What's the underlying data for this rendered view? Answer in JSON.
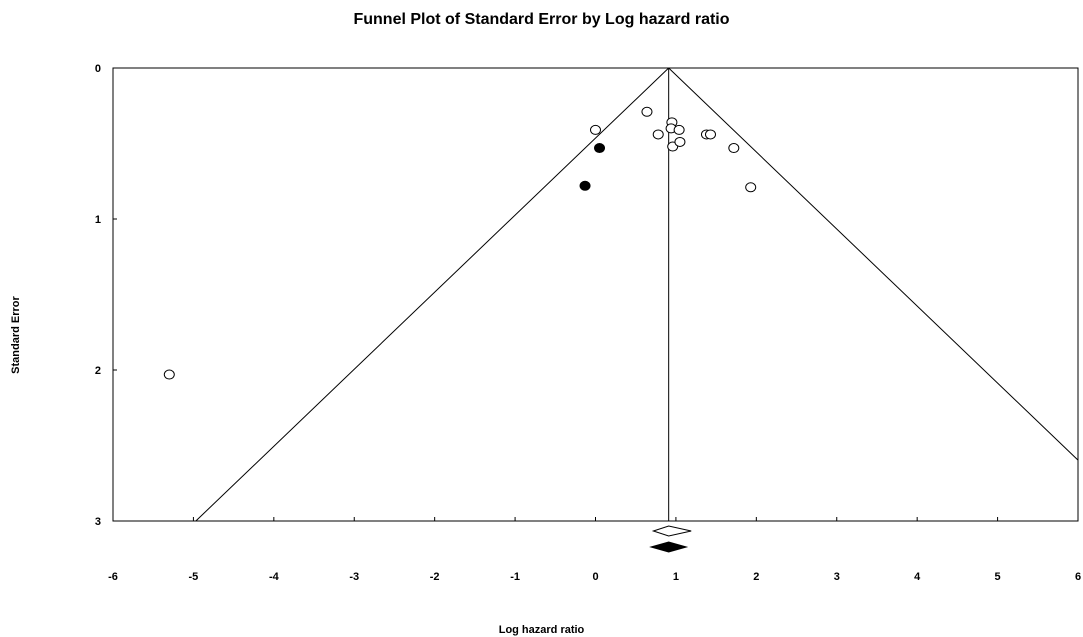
{
  "chart_data": {
    "type": "scatter",
    "title": "Funnel Plot of Standard Error by Log hazard ratio",
    "xlabel": "Log hazard ratio",
    "ylabel": "Standard Error",
    "xlim": [
      -6,
      6
    ],
    "ylim": [
      0,
      3
    ],
    "y_inverted": true,
    "x_ticks": [
      "-6",
      "-5",
      "-4",
      "-3",
      "-2",
      "-1",
      "0",
      "1",
      "2",
      "3",
      "4",
      "5",
      "6"
    ],
    "y_ticks": [
      "0",
      "1",
      "2",
      "3"
    ],
    "grid": false,
    "funnel_center": 0.91,
    "funnel_z": 1.96,
    "series": [
      {
        "marker": "open-circle",
        "points": [
          {
            "x": -5.3,
            "y": 2.03
          },
          {
            "x": 0.0,
            "y": 0.41
          },
          {
            "x": 0.64,
            "y": 0.29
          },
          {
            "x": 0.78,
            "y": 0.44
          },
          {
            "x": 0.95,
            "y": 0.36
          },
          {
            "x": 0.94,
            "y": 0.4
          },
          {
            "x": 1.04,
            "y": 0.41
          },
          {
            "x": 0.96,
            "y": 0.52
          },
          {
            "x": 1.05,
            "y": 0.49
          },
          {
            "x": 1.38,
            "y": 0.44
          },
          {
            "x": 1.43,
            "y": 0.44
          },
          {
            "x": 1.72,
            "y": 0.53
          },
          {
            "x": 1.93,
            "y": 0.79
          }
        ]
      },
      {
        "marker": "filled-circle",
        "points": [
          {
            "x": 0.05,
            "y": 0.53
          },
          {
            "x": -0.13,
            "y": 0.78
          }
        ]
      }
    ],
    "summary_diamonds": [
      {
        "style": "open",
        "center": 0.91,
        "lower": 0.72,
        "upper": 1.19
      },
      {
        "style": "filled",
        "center": 0.91,
        "lower": 0.69,
        "upper": 1.13
      }
    ]
  }
}
